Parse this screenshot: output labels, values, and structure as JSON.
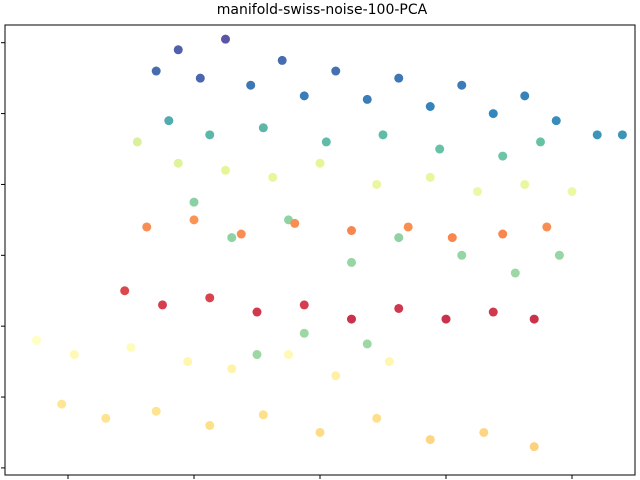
{
  "chart_data": {
    "type": "scatter",
    "title": "manifold-swiss-noise-100-PCA",
    "xlabel": "",
    "ylabel": "",
    "xlim": [
      -1.0,
      1.0
    ],
    "ylim": [
      -0.22,
      1.05
    ],
    "x_ticks": [
      -0.8,
      -0.4,
      0.0,
      0.4,
      0.8
    ],
    "y_ticks": [
      -0.2,
      0.0,
      0.2,
      0.4,
      0.6,
      0.8,
      1.0
    ],
    "tick_labels_visible": false,
    "grid": false,
    "legend": "none",
    "colormap": "Spectral",
    "colormap_stops": [
      "#9e0142",
      "#d53e4f",
      "#f46d43",
      "#fdae61",
      "#fee08b",
      "#ffffbf",
      "#e6f598",
      "#abdda4",
      "#66c2a5",
      "#3288bd",
      "#5e4fa2"
    ],
    "points": [
      {
        "x": -0.52,
        "y": 0.92,
        "c": 0.95
      },
      {
        "x": -0.45,
        "y": 0.98,
        "c": 0.97
      },
      {
        "x": -0.38,
        "y": 0.9,
        "c": 0.96
      },
      {
        "x": -0.3,
        "y": 1.01,
        "c": 0.99
      },
      {
        "x": -0.22,
        "y": 0.88,
        "c": 0.93
      },
      {
        "x": -0.12,
        "y": 0.95,
        "c": 0.95
      },
      {
        "x": -0.05,
        "y": 0.85,
        "c": 0.92
      },
      {
        "x": 0.05,
        "y": 0.92,
        "c": 0.94
      },
      {
        "x": 0.15,
        "y": 0.84,
        "c": 0.92
      },
      {
        "x": 0.25,
        "y": 0.9,
        "c": 0.93
      },
      {
        "x": 0.35,
        "y": 0.82,
        "c": 0.91
      },
      {
        "x": 0.45,
        "y": 0.88,
        "c": 0.92
      },
      {
        "x": 0.55,
        "y": 0.8,
        "c": 0.9
      },
      {
        "x": 0.65,
        "y": 0.85,
        "c": 0.91
      },
      {
        "x": 0.75,
        "y": 0.78,
        "c": 0.89
      },
      {
        "x": 0.88,
        "y": 0.74,
        "c": 0.88
      },
      {
        "x": 0.96,
        "y": 0.74,
        "c": 0.88
      },
      {
        "x": -0.48,
        "y": 0.78,
        "c": 0.84
      },
      {
        "x": -0.35,
        "y": 0.74,
        "c": 0.82
      },
      {
        "x": -0.18,
        "y": 0.76,
        "c": 0.82
      },
      {
        "x": 0.02,
        "y": 0.72,
        "c": 0.81
      },
      {
        "x": 0.2,
        "y": 0.74,
        "c": 0.81
      },
      {
        "x": 0.38,
        "y": 0.7,
        "c": 0.8
      },
      {
        "x": 0.58,
        "y": 0.68,
        "c": 0.79
      },
      {
        "x": 0.7,
        "y": 0.72,
        "c": 0.8
      },
      {
        "x": -0.4,
        "y": 0.55,
        "c": 0.75
      },
      {
        "x": -0.28,
        "y": 0.45,
        "c": 0.74
      },
      {
        "x": -0.1,
        "y": 0.5,
        "c": 0.74
      },
      {
        "x": 0.1,
        "y": 0.38,
        "c": 0.73
      },
      {
        "x": 0.25,
        "y": 0.45,
        "c": 0.74
      },
      {
        "x": 0.45,
        "y": 0.4,
        "c": 0.73
      },
      {
        "x": 0.62,
        "y": 0.35,
        "c": 0.72
      },
      {
        "x": 0.76,
        "y": 0.4,
        "c": 0.73
      },
      {
        "x": -0.2,
        "y": 0.12,
        "c": 0.72
      },
      {
        "x": -0.05,
        "y": 0.18,
        "c": 0.72
      },
      {
        "x": 0.15,
        "y": 0.15,
        "c": 0.72
      },
      {
        "x": -0.58,
        "y": 0.72,
        "c": 0.62
      },
      {
        "x": -0.45,
        "y": 0.66,
        "c": 0.61
      },
      {
        "x": -0.3,
        "y": 0.64,
        "c": 0.6
      },
      {
        "x": -0.15,
        "y": 0.62,
        "c": 0.59
      },
      {
        "x": 0.0,
        "y": 0.66,
        "c": 0.6
      },
      {
        "x": 0.18,
        "y": 0.6,
        "c": 0.58
      },
      {
        "x": 0.35,
        "y": 0.62,
        "c": 0.59
      },
      {
        "x": 0.5,
        "y": 0.58,
        "c": 0.57
      },
      {
        "x": 0.65,
        "y": 0.6,
        "c": 0.58
      },
      {
        "x": 0.8,
        "y": 0.58,
        "c": 0.57
      },
      {
        "x": -0.55,
        "y": 0.48,
        "c": 0.25
      },
      {
        "x": -0.4,
        "y": 0.5,
        "c": 0.26
      },
      {
        "x": -0.25,
        "y": 0.46,
        "c": 0.25
      },
      {
        "x": -0.08,
        "y": 0.49,
        "c": 0.25
      },
      {
        "x": 0.1,
        "y": 0.47,
        "c": 0.24
      },
      {
        "x": 0.28,
        "y": 0.48,
        "c": 0.25
      },
      {
        "x": 0.42,
        "y": 0.45,
        "c": 0.24
      },
      {
        "x": 0.58,
        "y": 0.46,
        "c": 0.24
      },
      {
        "x": 0.72,
        "y": 0.48,
        "c": 0.25
      },
      {
        "x": -0.62,
        "y": 0.3,
        "c": 0.12
      },
      {
        "x": -0.5,
        "y": 0.26,
        "c": 0.1
      },
      {
        "x": -0.35,
        "y": 0.28,
        "c": 0.11
      },
      {
        "x": -0.2,
        "y": 0.24,
        "c": 0.09
      },
      {
        "x": -0.05,
        "y": 0.26,
        "c": 0.1
      },
      {
        "x": 0.1,
        "y": 0.22,
        "c": 0.08
      },
      {
        "x": 0.25,
        "y": 0.25,
        "c": 0.09
      },
      {
        "x": 0.4,
        "y": 0.22,
        "c": 0.08
      },
      {
        "x": 0.55,
        "y": 0.24,
        "c": 0.09
      },
      {
        "x": 0.68,
        "y": 0.22,
        "c": 0.08
      },
      {
        "x": -0.9,
        "y": 0.16,
        "c": 0.5
      },
      {
        "x": -0.78,
        "y": 0.12,
        "c": 0.48
      },
      {
        "x": -0.6,
        "y": 0.14,
        "c": 0.49
      },
      {
        "x": -0.42,
        "y": 0.1,
        "c": 0.47
      },
      {
        "x": -0.28,
        "y": 0.08,
        "c": 0.46
      },
      {
        "x": -0.1,
        "y": 0.12,
        "c": 0.48
      },
      {
        "x": 0.05,
        "y": 0.06,
        "c": 0.45
      },
      {
        "x": 0.22,
        "y": 0.1,
        "c": 0.47
      },
      {
        "x": -0.82,
        "y": -0.02,
        "c": 0.42
      },
      {
        "x": -0.68,
        "y": -0.06,
        "c": 0.41
      },
      {
        "x": -0.52,
        "y": -0.04,
        "c": 0.41
      },
      {
        "x": -0.35,
        "y": -0.08,
        "c": 0.4
      },
      {
        "x": -0.18,
        "y": -0.05,
        "c": 0.4
      },
      {
        "x": 0.0,
        "y": -0.1,
        "c": 0.39
      },
      {
        "x": 0.18,
        "y": -0.06,
        "c": 0.4
      },
      {
        "x": 0.35,
        "y": -0.12,
        "c": 0.38
      },
      {
        "x": 0.52,
        "y": -0.1,
        "c": 0.38
      },
      {
        "x": 0.68,
        "y": -0.14,
        "c": 0.37
      }
    ]
  }
}
